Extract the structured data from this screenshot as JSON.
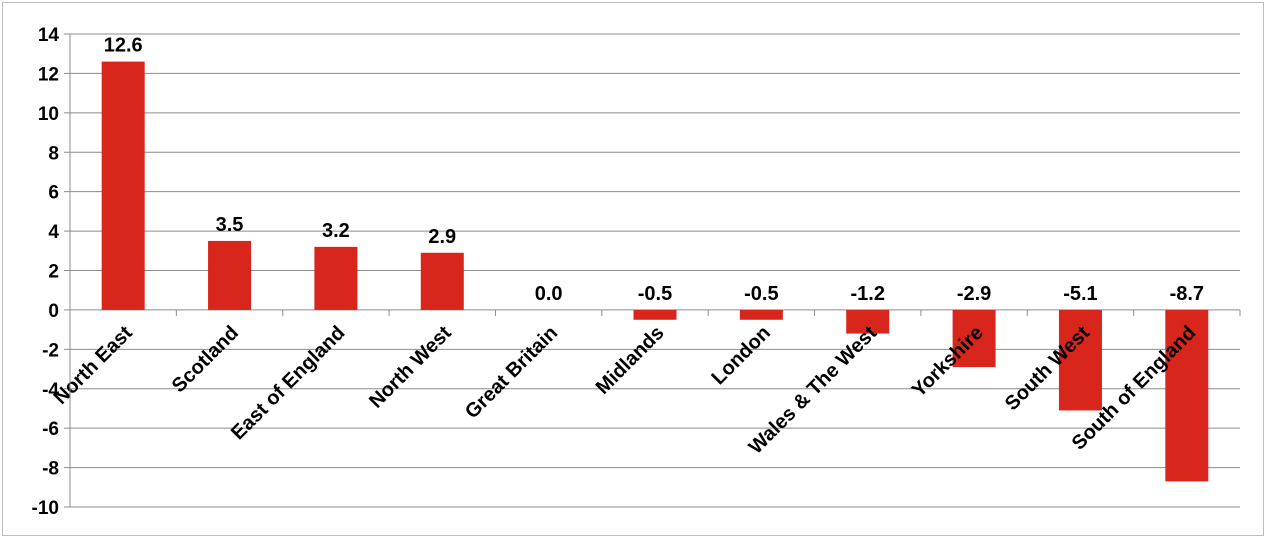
{
  "chart_data": {
    "type": "bar",
    "title": "",
    "xlabel": "",
    "ylabel": "",
    "ylim": [
      -10,
      14
    ],
    "ytick_step": 2,
    "grid": true,
    "legend": "none",
    "bar_color": "#d9261c",
    "categories": [
      "North East",
      "Scotland",
      "East of England",
      "North West",
      "Great Britain",
      "Midlands",
      "London",
      "Wales & The West",
      "Yorkshire",
      "South West",
      "South of England"
    ],
    "values": [
      12.6,
      3.5,
      3.2,
      2.9,
      0.0,
      -0.5,
      -0.5,
      -1.2,
      -2.9,
      -5.1,
      -8.7
    ],
    "data_labels": [
      "12.6",
      "3.5",
      "3.2",
      "2.9",
      "0.0",
      "-0.5",
      "-0.5",
      "-1.2",
      "-2.9",
      "-5.1",
      "-8.7"
    ]
  }
}
